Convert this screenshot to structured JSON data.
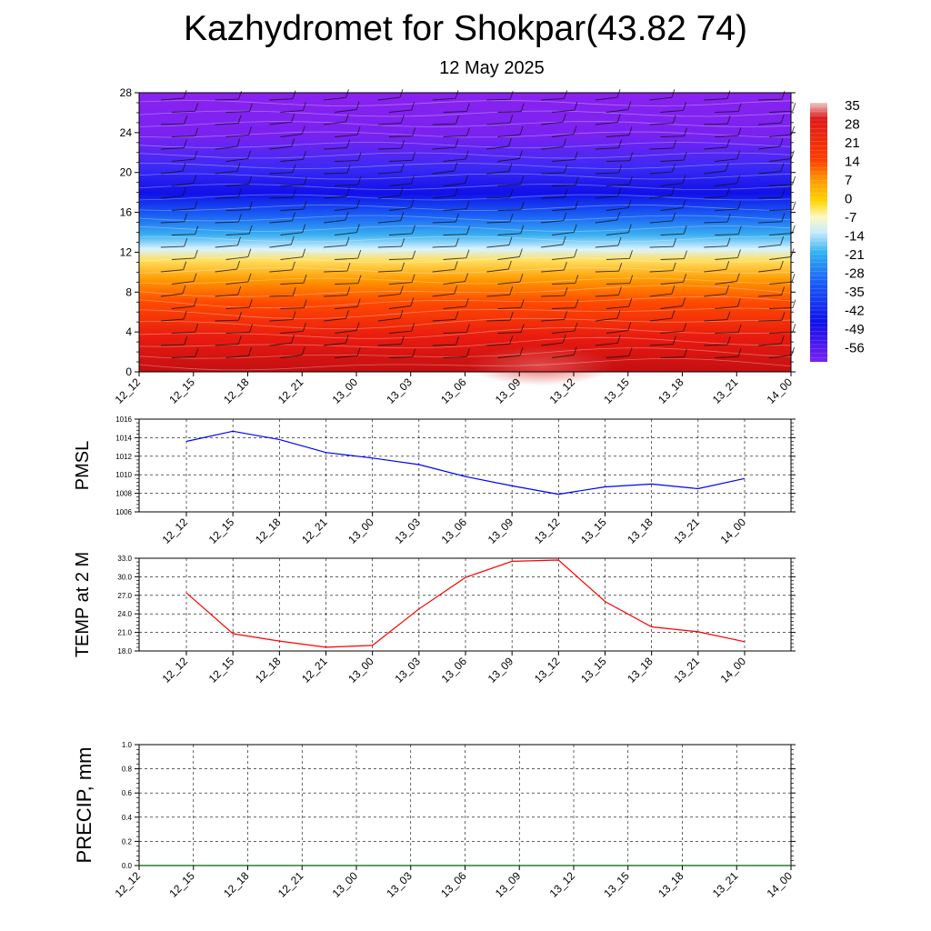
{
  "header": {
    "title": "Kazhydromet for Shokpar(43.82 74)",
    "date": "12 May 2025"
  },
  "colors": {
    "pmsl_line": "#0000ff",
    "temp_line": "#ff0000",
    "precip_line": "#006400",
    "colormap": [
      "#7b1fe0",
      "#2a10f0",
      "#1a3ef5",
      "#2aa8f0",
      "#fff9c0",
      "#ffd400",
      "#ff8800",
      "#ff2a00",
      "#d61010"
    ]
  },
  "chart_data": [
    {
      "type": "heatmap",
      "title": "",
      "xlabel": "",
      "ylabel": "",
      "x_ticks": [
        "12_12",
        "12_15",
        "12_18",
        "12_21",
        "13_00",
        "13_03",
        "13_06",
        "13_09",
        "13_12",
        "13_15",
        "13_18",
        "13_21",
        "14_00"
      ],
      "y_ticks": [
        "0",
        "4",
        "8",
        "12",
        "16",
        "20",
        "24",
        "28"
      ],
      "ylim": [
        0,
        28
      ],
      "colorbar_labels": [
        "35",
        "28",
        "21",
        "14",
        "7",
        "0",
        "-7",
        "-14",
        "-21",
        "-28",
        "-35",
        "-42",
        "-49",
        "-56"
      ],
      "overlay": "wind barbs"
    },
    {
      "type": "line",
      "title": "",
      "ylabel": "PMSL",
      "x": [
        "12_12",
        "12_15",
        "12_18",
        "12_21",
        "13_00",
        "13_03",
        "13_06",
        "13_09",
        "13_12",
        "13_15",
        "13_18",
        "13_21",
        "14_00"
      ],
      "series": [
        {
          "values": [
            1013.6,
            1014.7,
            1013.8,
            1012.4,
            1011.8,
            1011.1,
            1009.8,
            1008.8,
            1007.9,
            1008.7,
            1009.0,
            1008.5,
            1009.6
          ]
        }
      ],
      "ylim": [
        1006,
        1016
      ],
      "y_ticks": [
        "1006",
        "1008",
        "1010",
        "1012",
        "1014",
        "1016"
      ],
      "grid": true
    },
    {
      "type": "line",
      "title": "",
      "ylabel": "TEMP at 2 M",
      "x": [
        "12_12",
        "12_15",
        "12_18",
        "12_21",
        "13_00",
        "13_03",
        "13_06",
        "13_09",
        "13_12",
        "13_15",
        "13_18",
        "13_21",
        "14_00"
      ],
      "series": [
        {
          "values": [
            27.4,
            20.8,
            19.6,
            18.6,
            18.9,
            24.8,
            29.9,
            32.5,
            32.7,
            26.0,
            21.9,
            21.1,
            19.5
          ]
        }
      ],
      "ylim": [
        18,
        33
      ],
      "y_ticks": [
        "18.0",
        "21.0",
        "24.0",
        "27.0",
        "30.0",
        "33.0"
      ],
      "grid": true
    },
    {
      "type": "line",
      "title": "",
      "ylabel": "PRECIP, mm",
      "x": [
        "12_12",
        "12_15",
        "12_18",
        "12_21",
        "13_00",
        "13_03",
        "13_06",
        "13_09",
        "13_12",
        "13_15",
        "13_18",
        "13_21",
        "14_00"
      ],
      "series": [
        {
          "values": [
            0,
            0,
            0,
            0,
            0,
            0,
            0,
            0,
            0,
            0,
            0,
            0,
            0
          ]
        }
      ],
      "ylim": [
        0,
        1
      ],
      "y_ticks": [
        "0.0",
        "0.2",
        "0.4",
        "0.6",
        "0.8",
        "1.0"
      ],
      "grid": true
    }
  ]
}
